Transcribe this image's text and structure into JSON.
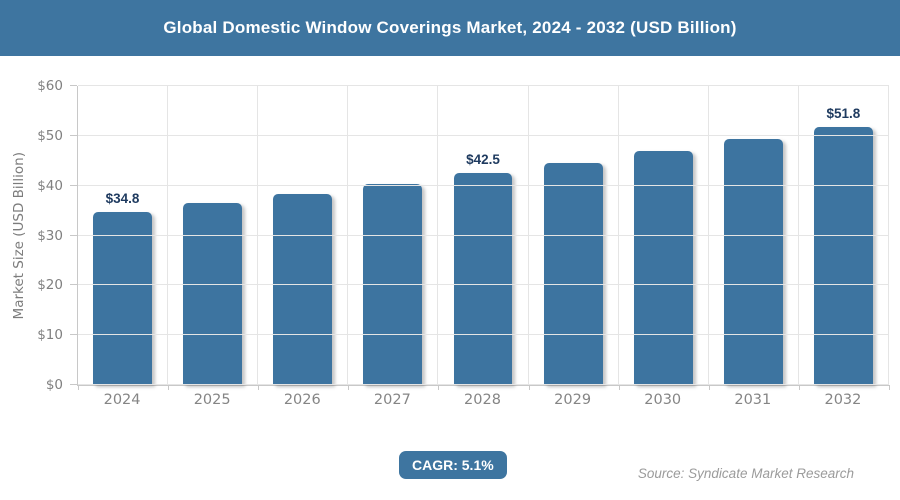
{
  "header": {
    "title": "Global Domestic Window Coverings Market, 2024 - 2032 (USD Billion)"
  },
  "chart_data": {
    "type": "bar",
    "title": "Global Domestic Window Coverings Market, 2024 - 2032 (USD Billion)",
    "categories": [
      "2024",
      "2025",
      "2026",
      "2027",
      "2028",
      "2029",
      "2030",
      "2031",
      "2032"
    ],
    "values": [
      34.8,
      36.6,
      38.4,
      40.4,
      42.5,
      44.6,
      46.9,
      49.3,
      51.8
    ],
    "bar_labels": [
      "$34.8",
      null,
      null,
      null,
      "$42.5",
      null,
      null,
      null,
      "$51.8"
    ],
    "xlabel": "",
    "ylabel": "Market Size (USD Billion)",
    "y_ticks": [
      "$0",
      "$10",
      "$20",
      "$30",
      "$40",
      "$50",
      "$60"
    ],
    "ylim": [
      0,
      60
    ],
    "grid": true,
    "legend": "none",
    "bar_color": "#3d74a0",
    "bar_label_color": "#1e3a5f"
  },
  "footer": {
    "cagr_label": "CAGR: 5.1%",
    "source": "Source: Syndicate Market Research"
  },
  "colors": {
    "header_bg": "#3e75a0",
    "bar": "#3d74a0",
    "badge_bg": "#3e75a0",
    "gridline": "#e5e5e5",
    "axis_line": "#c8c8c8",
    "tick_text": "#808080",
    "source_text": "#9b9b9b"
  }
}
